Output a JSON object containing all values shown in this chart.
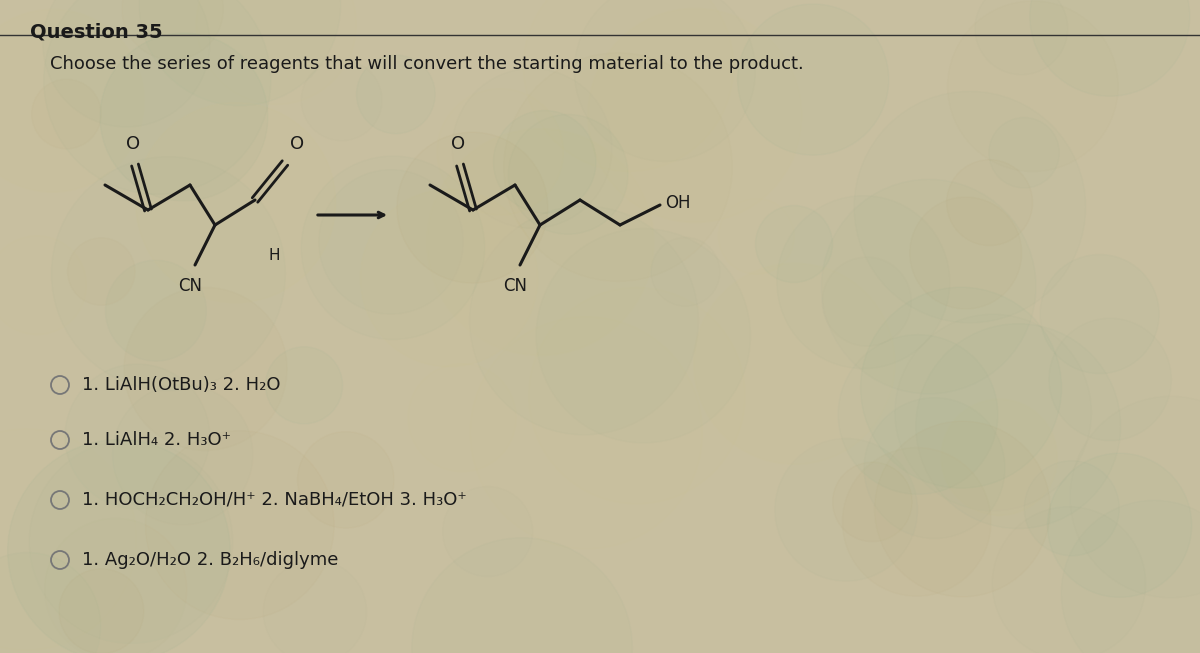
{
  "title": "Question 35",
  "subtitle": "Choose the series of reagents that will convert the starting material to the product.",
  "bg_color": "#c8bfa0",
  "text_color": "#1a1a1a",
  "title_fontsize": 14,
  "subtitle_fontsize": 13,
  "option_fontsize": 13,
  "options": [
    "1. LiAlH(OtBu)₃ 2. H₂O",
    "1. LiAlH₄ 2. H₃O⁺",
    "1. HOCH₂CH₂OH/H⁺ 2. NaBH₄/EtOH 3. H₃O⁺",
    "1. Ag₂O/H₂O 2. B₂H₆/diglyme"
  ]
}
